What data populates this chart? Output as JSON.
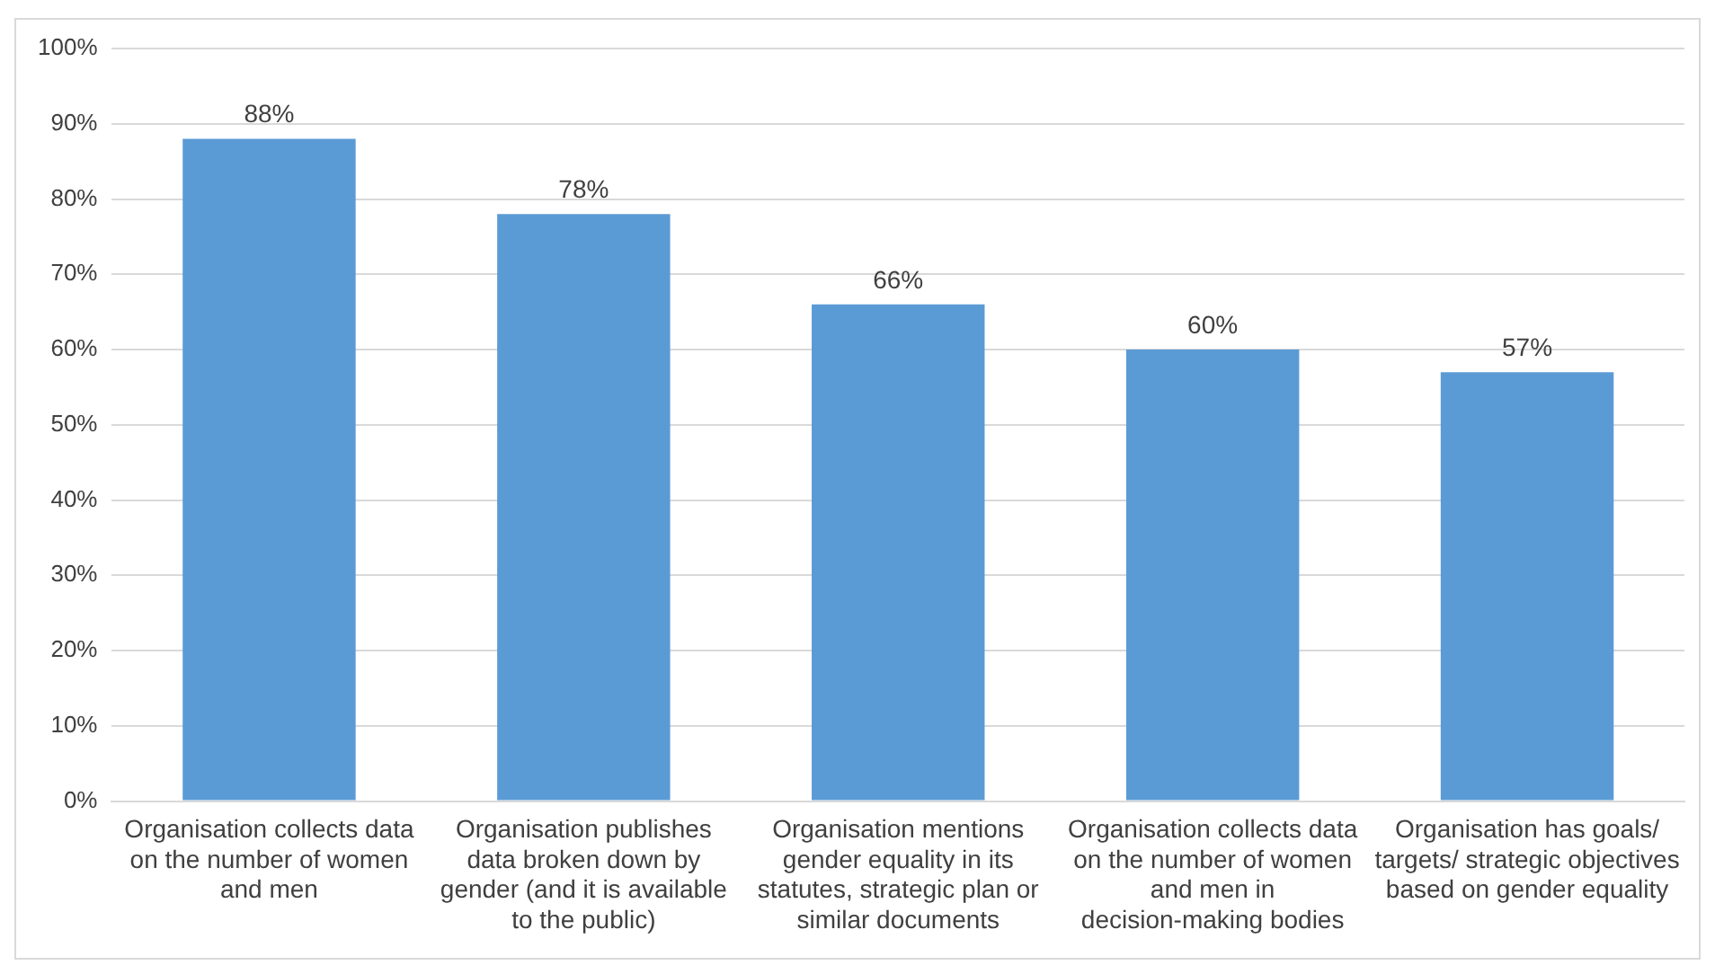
{
  "chart_data": {
    "type": "bar",
    "categories": [
      "Organisation collects data on the number of women and men",
      "Organisation publishes data broken down by gender (and it is available to the public)",
      "Organisation mentions gender equality in its statutes, strategic plan or similar documents",
      "Organisation collects data on the number of women and men in decision-making bodies",
      "Organisation has goals/ targets/ strategic objectives based on gender equality"
    ],
    "values": [
      88,
      78,
      66,
      60,
      57
    ],
    "value_labels": [
      "88%",
      "78%",
      "66%",
      "60%",
      "57%"
    ],
    "color": "#5b9bd5",
    "ylim": [
      0,
      100
    ],
    "yticks": [
      {
        "value": 0,
        "label": "0%"
      },
      {
        "value": 10,
        "label": "10%"
      },
      {
        "value": 20,
        "label": "20%"
      },
      {
        "value": 30,
        "label": "30%"
      },
      {
        "value": 40,
        "label": "40%"
      },
      {
        "value": 50,
        "label": "50%"
      },
      {
        "value": 60,
        "label": "60%"
      },
      {
        "value": 70,
        "label": "70%"
      },
      {
        "value": 80,
        "label": "80%"
      },
      {
        "value": 90,
        "label": "90%"
      },
      {
        "value": 100,
        "label": "100%"
      }
    ],
    "grid": "y",
    "legend": false
  }
}
